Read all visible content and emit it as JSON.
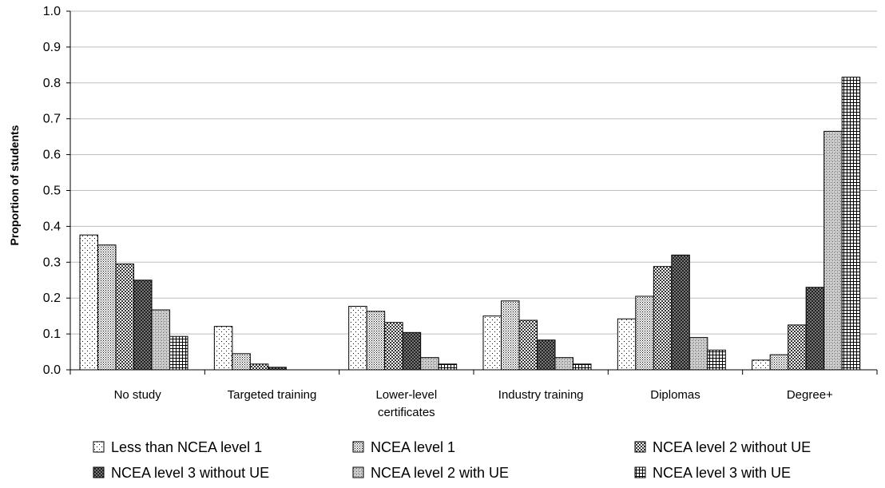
{
  "chart_data": {
    "type": "bar",
    "title": "",
    "xlabel": "",
    "ylabel": "Proportion of students",
    "ylim": [
      0,
      1.0
    ],
    "yticks": [
      "0.0",
      "0.1",
      "0.2",
      "0.3",
      "0.4",
      "0.5",
      "0.6",
      "0.7",
      "0.8",
      "0.9",
      "1.0"
    ],
    "grid": true,
    "legend_position": "bottom",
    "categories": [
      [
        "No study"
      ],
      [
        "Targeted training"
      ],
      [
        "Lower-level",
        "certificates"
      ],
      [
        "Industry training"
      ],
      [
        "Diplomas"
      ],
      [
        "Degree+"
      ]
    ],
    "series": [
      {
        "name": "Less than NCEA level 1",
        "pattern": "dots-sparse",
        "values": [
          0.376,
          0.121,
          0.177,
          0.15,
          0.142,
          0.027
        ]
      },
      {
        "name": "NCEA level 1",
        "pattern": "dots-dense",
        "values": [
          0.348,
          0.045,
          0.163,
          0.192,
          0.205,
          0.042
        ]
      },
      {
        "name": "NCEA level 2 without UE",
        "pattern": "checker",
        "values": [
          0.295,
          0.016,
          0.132,
          0.138,
          0.288,
          0.125
        ]
      },
      {
        "name": "NCEA level 3 without UE",
        "pattern": "checker-dark",
        "values": [
          0.25,
          0.007,
          0.104,
          0.083,
          0.32,
          0.23
        ]
      },
      {
        "name": "NCEA level 2 with UE",
        "pattern": "diag-check",
        "values": [
          0.167,
          0.0,
          0.034,
          0.034,
          0.09,
          0.665
        ]
      },
      {
        "name": "NCEA level 3 with UE",
        "pattern": "grid",
        "values": [
          0.093,
          0.0,
          0.016,
          0.016,
          0.055,
          0.816
        ]
      }
    ]
  }
}
